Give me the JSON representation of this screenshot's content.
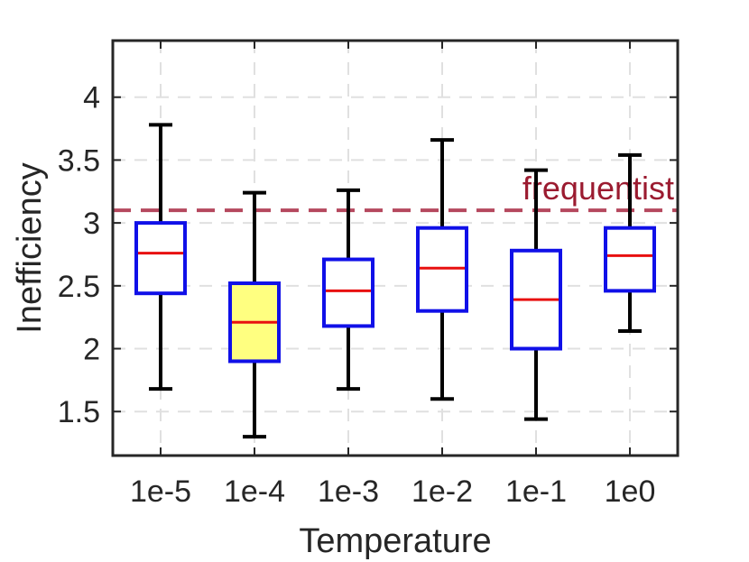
{
  "chart_data": {
    "type": "boxplot",
    "xlabel": "Temperature",
    "ylabel": "Inefficiency",
    "ylim": [
      1.15,
      4.45
    ],
    "yticks": [
      1.5,
      2,
      2.5,
      3,
      3.5,
      4
    ],
    "ytick_labels": [
      "1.5",
      "2",
      "2.5",
      "3",
      "3.5",
      "4"
    ],
    "grid": true,
    "categories": [
      "1e-5",
      "1e-4",
      "1e-3",
      "1e-2",
      "1e-1",
      "1e0"
    ],
    "boxes": [
      {
        "whisker_low": 1.68,
        "q1": 2.44,
        "median": 2.76,
        "q3": 3.0,
        "whisker_high": 3.78
      },
      {
        "whisker_low": 1.3,
        "q1": 1.9,
        "median": 2.21,
        "q3": 2.52,
        "whisker_high": 3.24
      },
      {
        "whisker_low": 1.68,
        "q1": 2.18,
        "median": 2.46,
        "q3": 2.71,
        "whisker_high": 3.26
      },
      {
        "whisker_low": 1.6,
        "q1": 2.3,
        "median": 2.64,
        "q3": 2.96,
        "whisker_high": 3.66
      },
      {
        "whisker_low": 1.44,
        "q1": 2.0,
        "median": 2.39,
        "q3": 2.78,
        "whisker_high": 3.42
      },
      {
        "whisker_low": 2.14,
        "q1": 2.46,
        "median": 2.74,
        "q3": 2.96,
        "whisker_high": 3.54
      }
    ],
    "highlighted_index": 1,
    "reference_line": {
      "label": "frequentist",
      "value": 3.1,
      "color": "#b5485e",
      "label_color": "#9b1b30"
    },
    "colors": {
      "box_edge": "#1010e8",
      "median": "#e81010",
      "whisker": "#000000",
      "highlight_fill": "#ffff80",
      "grid": "#e0e0e0",
      "axes": "#262626"
    }
  }
}
